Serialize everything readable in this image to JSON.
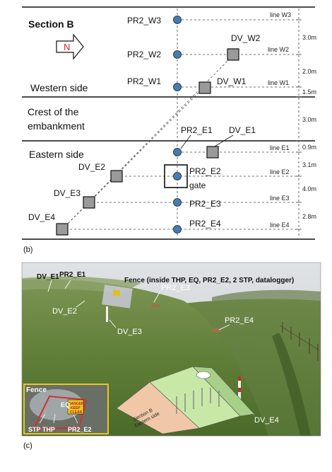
{
  "diagram": {
    "section_title": "Section B",
    "arrow_letter": "N",
    "zones": {
      "western": "Western side",
      "crest_1": "Crest of the",
      "crest_2": "embankment",
      "eastern": "Eastern side"
    },
    "piezometers": {
      "w3": "PR2_W3",
      "w2": "PR2_W2",
      "w1": "PR2_W1",
      "e1": "PR2_E1",
      "e2": "PR2_E2",
      "e2_gate": "gate",
      "e3": "PR2_E3",
      "e4": "PR2_E4"
    },
    "deformation_points": {
      "w2": "DV_W2",
      "w1": "DV_W1",
      "e1": "DV_E1",
      "e2": "DV_E2",
      "e3": "DV_E3",
      "e4": "DV_E4"
    },
    "lines": {
      "w3": "line W3",
      "w2": "line W2",
      "w1": "line W1",
      "e1": "line E1",
      "e2": "line E2",
      "e3": "line E3",
      "e4": "line E4"
    },
    "spacings": [
      "3.0m",
      "2.0m",
      "1.5m",
      "3.0m",
      "0.9m",
      "3.1m",
      "4.0m",
      "2.8m"
    ],
    "caption": "(b)"
  },
  "photo": {
    "caption": "(c)",
    "labels": {
      "dv_e1": "DV_E1",
      "pr2_e1": "PR2_E1",
      "fence_note": "Fence (inside THP, EQ, PR2_E2, 2 STP, datalogger)",
      "dv_e2": "DV_E2",
      "dv_e3": "DV_E3",
      "pr2_e3": "PR2_E3",
      "pr2_e4": "PR2_E4",
      "dv_e4": "DV_E4"
    },
    "inset": {
      "title": "Fence",
      "eq": "EQ",
      "sign_1": "DANGER",
      "sign_2": "KEEP",
      "sign_3": "CLEAR",
      "stp_thp": "STP THP",
      "pr2_e2": "PR2_E2"
    },
    "model_1": "Section B",
    "model_2": "Eastern side"
  }
}
